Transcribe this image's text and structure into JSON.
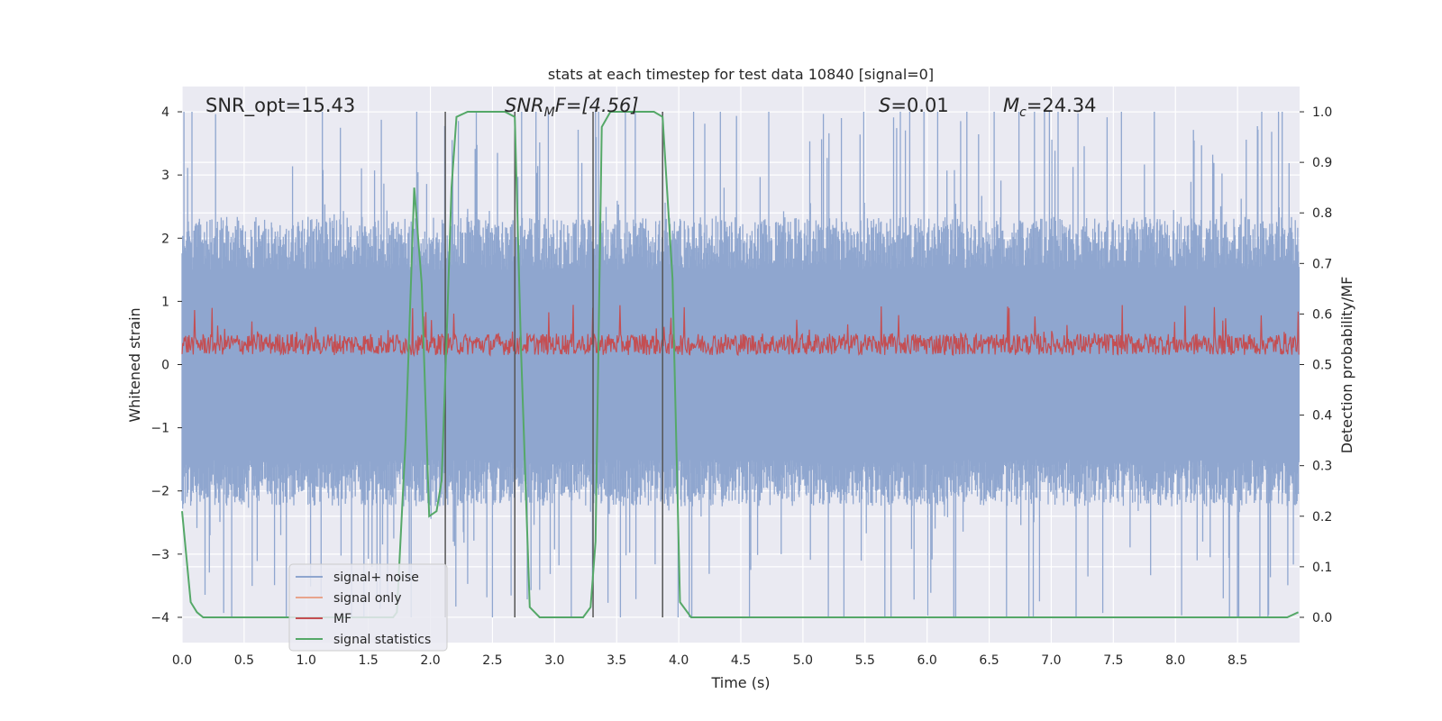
{
  "chart_data": {
    "type": "line",
    "title": "stats at each timestep for test data 10840 [signal=0]",
    "xlabel": "Time (s)",
    "ylabel_left": "Whitened strain",
    "ylabel_right": "Detection probability/MF",
    "xlim": [
      0.0,
      9.0
    ],
    "ylim_left": [
      -4.4,
      4.4
    ],
    "ylim_right": [
      -0.05,
      1.05
    ],
    "x_ticks": [
      "0.0",
      "0.5",
      "1.0",
      "1.5",
      "2.0",
      "2.5",
      "3.0",
      "3.5",
      "4.0",
      "4.5",
      "5.0",
      "5.5",
      "6.0",
      "6.5",
      "7.0",
      "7.5",
      "8.0",
      "8.5"
    ],
    "y_ticks_left": [
      "4",
      "3",
      "2",
      "1",
      "0",
      "−1",
      "−2",
      "−3",
      "−4"
    ],
    "y_ticks_right": [
      "1.0",
      "0.9",
      "0.8",
      "0.7",
      "0.6",
      "0.5",
      "0.4",
      "0.3",
      "0.2",
      "0.1",
      "0.0"
    ],
    "grid": true,
    "colors": {
      "signal_noise": "#8fa6cf",
      "signal_only": "#e8a48c",
      "mf": "#c44e52",
      "statistics": "#55a868",
      "vline": "#555555",
      "background": "#eaeaf2"
    },
    "annotations": {
      "snr_opt": "SNR_opt=15.43",
      "snr_mf_base": "SNR",
      "snr_mf_sub": "M",
      "snr_mf_rest": "F=[4.56]",
      "s_sym": "S",
      "s_val": "=0.01",
      "mc_sym": "M",
      "mc_sub": "c",
      "mc_val": "=24.34"
    },
    "legend": [
      "signal+ noise",
      "signal only",
      "MF",
      "signal statistics"
    ],
    "legend_position": "lower-left",
    "vlines": [
      2.12,
      2.68,
      3.31,
      3.87
    ],
    "noise_envelope": {
      "upper_typical": 1.5,
      "lower_typical": -1.5,
      "upper_peak": 4.0,
      "lower_peak": -4.0
    },
    "mf_band": {
      "low": 0.05,
      "high": 0.55
    },
    "signal_statistics": {
      "x": [
        0.0,
        0.07,
        0.12,
        0.17,
        0.25,
        0.5,
        1.0,
        1.5,
        1.7,
        1.73,
        1.8,
        1.87,
        1.93,
        1.99,
        2.05,
        2.09,
        2.13,
        2.17,
        2.21,
        2.3,
        2.6,
        2.68,
        2.73,
        2.8,
        2.88,
        3.0,
        3.23,
        3.29,
        3.33,
        3.38,
        3.45,
        3.55,
        3.8,
        3.87,
        3.95,
        4.01,
        4.1,
        4.5,
        5.0,
        6.0,
        7.0,
        8.0,
        8.7,
        8.9,
        8.99
      ],
      "y": [
        0.21,
        0.03,
        0.01,
        0.0,
        0.0,
        0.0,
        0.0,
        0.0,
        0.0,
        0.01,
        0.35,
        0.85,
        0.66,
        0.2,
        0.21,
        0.27,
        0.55,
        0.85,
        0.99,
        1.0,
        1.0,
        0.99,
        0.53,
        0.02,
        0.0,
        0.0,
        0.0,
        0.02,
        0.15,
        0.97,
        1.0,
        1.0,
        1.0,
        0.99,
        0.67,
        0.03,
        0.0,
        0.0,
        0.0,
        0.0,
        0.0,
        0.0,
        0.0,
        0.0,
        0.01
      ]
    }
  }
}
